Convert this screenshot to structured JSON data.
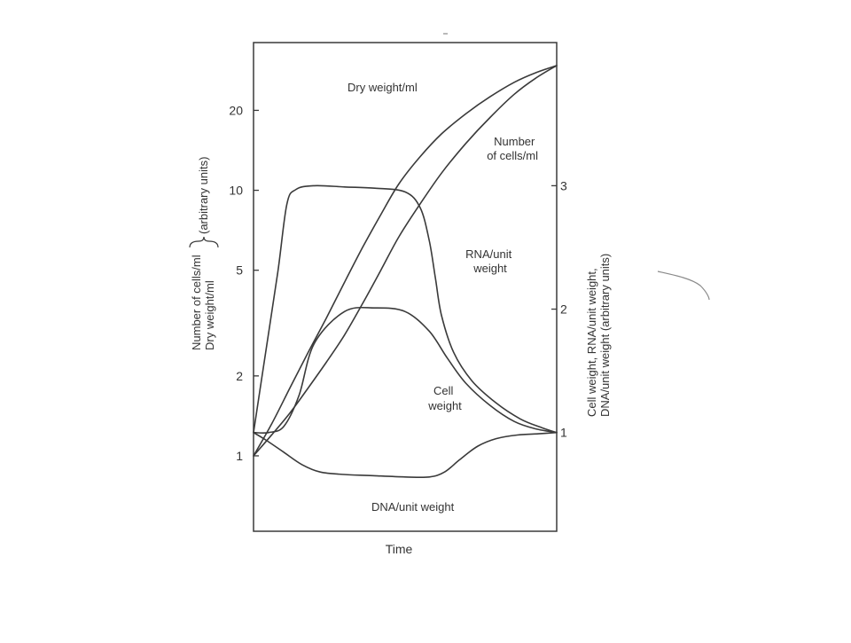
{
  "chart_data": {
    "type": "line",
    "xlabel": "Time",
    "ylabel_left": {
      "lines": [
        "Number of cells/ml",
        "Dry weight/ml"
      ],
      "suffix": "(arbitrary units)"
    },
    "ylabel_right": {
      "lines": [
        "Cell weight, RNA/unit weight,",
        "DNA/unit weight (arbitrary units)"
      ]
    },
    "y_left": {
      "scale": "log",
      "ticks": [
        1,
        2,
        5,
        10,
        20
      ],
      "tick_labels": [
        "1",
        "2",
        "5",
        "10",
        "20"
      ],
      "range": [
        0.52,
        36
      ]
    },
    "y_right": {
      "scale": "linear",
      "ticks": [
        1,
        2,
        3
      ],
      "tick_labels": [
        "1",
        "2",
        "3"
      ],
      "range": [
        0.2,
        4.16
      ]
    },
    "x_range": [
      0,
      1
    ],
    "series": [
      {
        "name": "Dry weight/ml",
        "axis": "left",
        "x": [
          0,
          0.06,
          0.12,
          0.18,
          0.24,
          0.3,
          0.36,
          0.42,
          0.48,
          0.55,
          0.62,
          0.7,
          0.78,
          0.86,
          0.93,
          1.0
        ],
        "y": [
          1.0,
          1.32,
          1.8,
          2.45,
          3.3,
          4.5,
          6.1,
          8.1,
          10.6,
          13.4,
          16.3,
          19.4,
          22.5,
          25.5,
          27.7,
          29.5
        ]
      },
      {
        "name": "Number of cells/ml",
        "axis": "left",
        "x": [
          0,
          0.06,
          0.12,
          0.18,
          0.24,
          0.3,
          0.36,
          0.42,
          0.48,
          0.55,
          0.62,
          0.7,
          0.78,
          0.86,
          0.93,
          1.0
        ],
        "y": [
          1.0,
          1.2,
          1.45,
          1.8,
          2.25,
          2.85,
          3.75,
          5.0,
          6.7,
          8.9,
          11.6,
          15.0,
          18.8,
          23.0,
          26.4,
          29.5
        ]
      },
      {
        "name": "RNA/unit weight",
        "axis": "right",
        "x": [
          0,
          0.04,
          0.08,
          0.11,
          0.14,
          0.2,
          0.3,
          0.4,
          0.5,
          0.55,
          0.58,
          0.6,
          0.62,
          0.66,
          0.72,
          0.8,
          0.88,
          0.95,
          1.0
        ],
        "y": [
          1.0,
          1.65,
          2.3,
          2.85,
          2.97,
          3.0,
          2.99,
          2.98,
          2.95,
          2.82,
          2.55,
          2.25,
          1.95,
          1.65,
          1.42,
          1.24,
          1.11,
          1.04,
          1.0
        ]
      },
      {
        "name": "Cell weight",
        "axis": "right",
        "x": [
          0,
          0.05,
          0.1,
          0.15,
          0.2,
          0.3,
          0.4,
          0.5,
          0.58,
          0.64,
          0.7,
          0.78,
          0.86,
          0.93,
          1.0
        ],
        "y": [
          1.0,
          1.0,
          1.05,
          1.3,
          1.72,
          1.98,
          2.01,
          1.98,
          1.82,
          1.6,
          1.4,
          1.22,
          1.09,
          1.03,
          1.0
        ]
      },
      {
        "name": "DNA/unit weight",
        "axis": "right",
        "x": [
          0,
          0.04,
          0.1,
          0.16,
          0.22,
          0.3,
          0.4,
          0.5,
          0.58,
          0.63,
          0.68,
          0.74,
          0.8,
          0.87,
          0.94,
          1.0
        ],
        "y": [
          1.0,
          0.94,
          0.84,
          0.74,
          0.68,
          0.66,
          0.65,
          0.64,
          0.64,
          0.68,
          0.78,
          0.89,
          0.95,
          0.98,
          0.99,
          1.0
        ]
      }
    ],
    "annotations": [
      {
        "text": "Dry weight/ml",
        "series": "Dry weight/ml"
      },
      {
        "text": [
          "Number",
          "of cells/ml"
        ],
        "series": "Number of cells/ml"
      },
      {
        "text": [
          "RNA/unit",
          "weight"
        ],
        "series": "RNA/unit weight"
      },
      {
        "text": [
          "Cell",
          "weight"
        ],
        "series": "Cell weight"
      },
      {
        "text": "DNA/unit weight",
        "series": "DNA/unit weight"
      }
    ],
    "grid": false
  }
}
